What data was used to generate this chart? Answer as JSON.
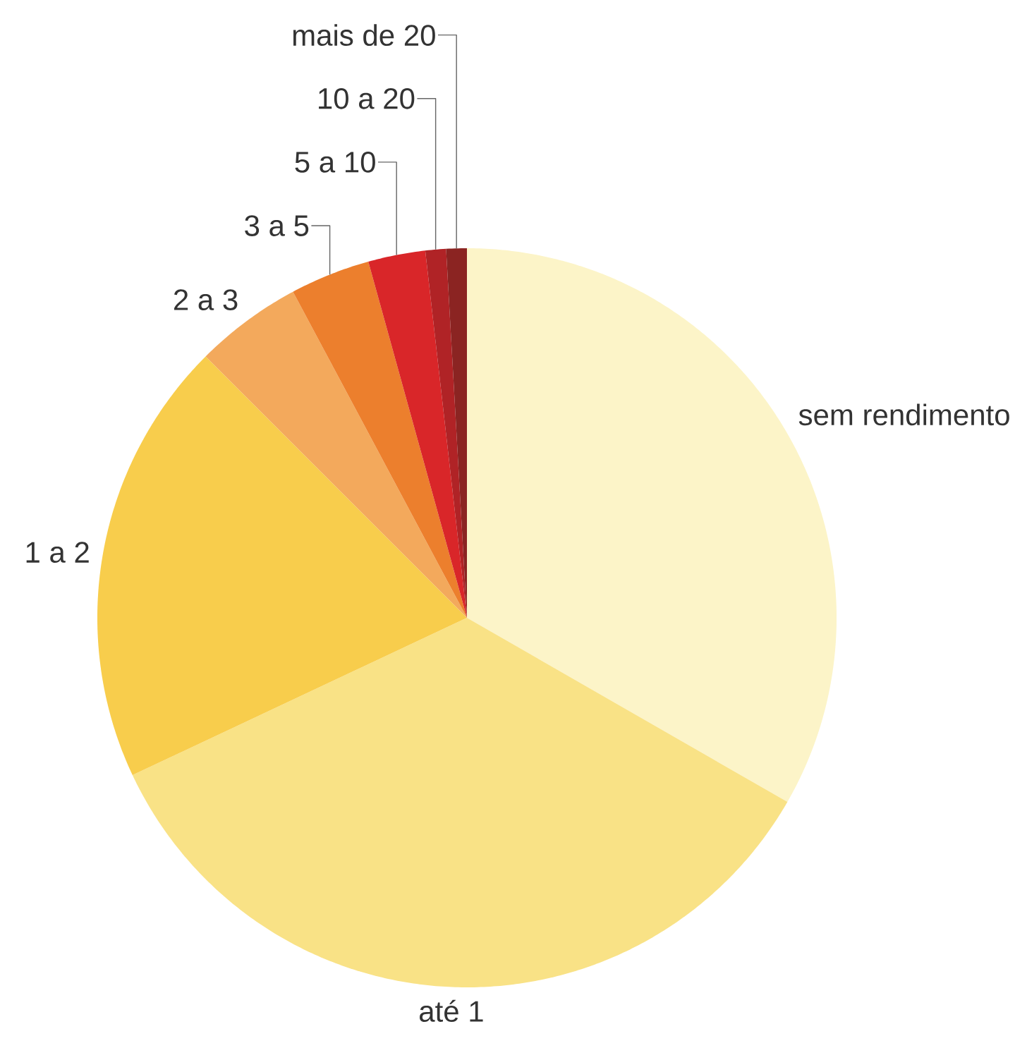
{
  "chart_data": {
    "type": "pie",
    "categories": [
      "sem rendimento",
      "até 1",
      "1 a 2",
      "2 a 3",
      "3 a 5",
      "5 a 10",
      "10 a 20",
      "mais de 20"
    ],
    "values": [
      33.3,
      34.7,
      19.5,
      4.7,
      3.5,
      2.5,
      0.9,
      0.9
    ],
    "colors": [
      "#fcf4c8",
      "#f9e286",
      "#f8cd4c",
      "#f3a95c",
      "#ec7f2d",
      "#d92629",
      "#b02326",
      "#8b2422"
    ]
  }
}
